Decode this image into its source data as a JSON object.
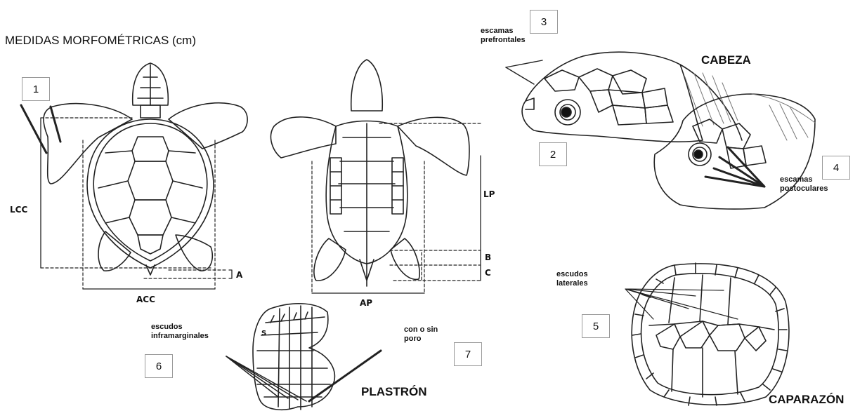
{
  "title": "MEDIDAS MORFOMÉTRICAS (cm)",
  "sections": {
    "head": "CABEZA",
    "plastron": "PLASTRÓN",
    "carapace": "CAPARAZÓN"
  },
  "labels": {
    "prefrontal_line1": "escamas",
    "prefrontal_line2": "prefrontales",
    "postocular_line1": "escamas",
    "postocular_line2": "postoculares",
    "lateral_line1": "escudos",
    "lateral_line2": "laterales",
    "inframarginal_line1": "escudos",
    "inframarginal_line2": "inframarginales",
    "pore_line1": "con  o sin",
    "pore_line2": "poro"
  },
  "boxes": [
    "1",
    "2",
    "3",
    "4",
    "5",
    "6",
    "7"
  ],
  "dimensions": {
    "lcc": "LCC",
    "acc": "ACC",
    "a": "A",
    "ap": "AP",
    "lp": "LP",
    "b": "B",
    "c": "C",
    "s": "S"
  }
}
